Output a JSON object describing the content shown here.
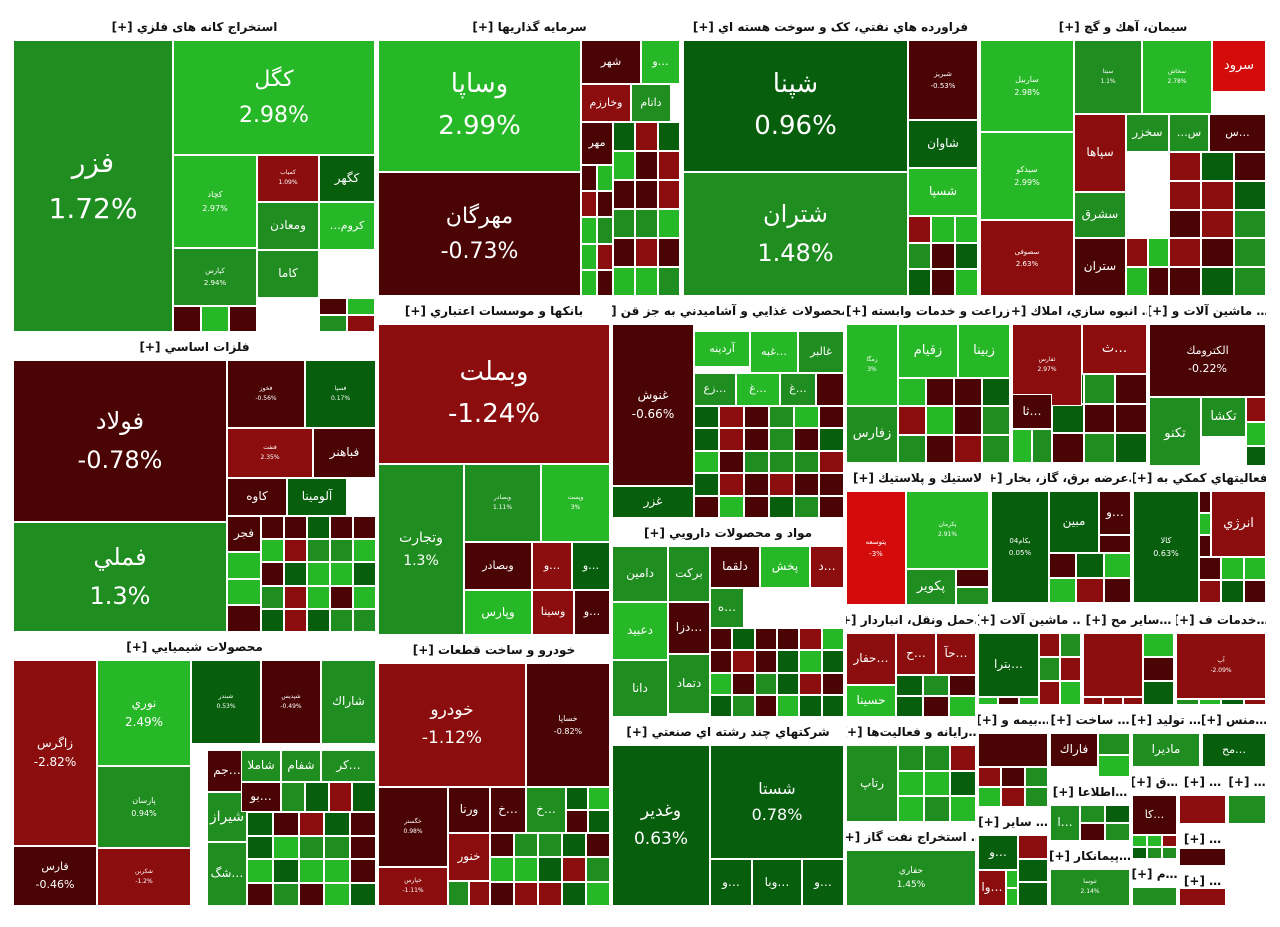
{
  "colors": {
    "dark_red": "#4a0404",
    "red": "#8b0d0d",
    "bright_red": "#d40b0b",
    "dark_green": "#075e0d",
    "green": "#1f8d1f",
    "bright_green": "#27b827",
    "grid_line": "#ffffff"
  },
  "sectors": [
    {
      "id": "metal-mining",
      "title": "استخراج کانه های فلزي [+]",
      "tiles": [
        {
          "symbol": "فزر",
          "change": "1.72%",
          "color": "green"
        },
        {
          "symbol": "کگل",
          "change": "2.98%",
          "color": "bright_green"
        },
        {
          "symbol": "کچاد",
          "change": "2.97%",
          "color": "bright_green"
        },
        {
          "symbol": "کمیاب",
          "change": "1.09%",
          "color": "red"
        },
        {
          "symbol": "کگهر",
          "change": "",
          "color": "dark_green"
        },
        {
          "symbol": "ومعادن",
          "change": "",
          "color": "green"
        },
        {
          "symbol": "کروم…",
          "change": "",
          "color": "bright_green"
        },
        {
          "symbol": "کاما",
          "change": "",
          "color": "green"
        },
        {
          "symbol": "کپارس",
          "change": "2.94%",
          "color": "green"
        }
      ]
    },
    {
      "id": "investment",
      "title": "سرمايه گذاريها [+]",
      "tiles": [
        {
          "symbol": "وساپا",
          "change": "2.99%",
          "color": "bright_green"
        },
        {
          "symbol": "مهرگان",
          "change": "-0.73%",
          "color": "dark_red"
        },
        {
          "symbol": "شهر",
          "change": "",
          "color": "dark_red"
        },
        {
          "symbol": "…و",
          "change": "",
          "color": "bright_green"
        },
        {
          "symbol": "وخارزم",
          "change": "",
          "color": "red"
        },
        {
          "symbol": "داتام",
          "change": "",
          "color": "green"
        },
        {
          "symbol": "مهر",
          "change": "",
          "color": "dark_red"
        }
      ]
    },
    {
      "id": "oil-products",
      "title": "فراورده هاي نفتي، کک و سوخت هسته اي [+]",
      "tiles": [
        {
          "symbol": "شپنا",
          "change": "0.96%",
          "color": "dark_green"
        },
        {
          "symbol": "شتران",
          "change": "1.48%",
          "color": "green"
        },
        {
          "symbol": "شبریز",
          "change": "-0.53%",
          "color": "dark_red"
        },
        {
          "symbol": "شاوان",
          "change": "",
          "color": "dark_green"
        },
        {
          "symbol": "شسپا",
          "change": "",
          "color": "bright_green"
        }
      ]
    },
    {
      "id": "cement",
      "title": "سيمان، آهك و گچ [+]",
      "tiles": [
        {
          "symbol": "سرود",
          "change": "",
          "color": "bright_red"
        },
        {
          "symbol": "ساربیل",
          "change": "2.98%",
          "color": "bright_green"
        },
        {
          "symbol": "سیتا",
          "change": "1.1%",
          "color": "green"
        },
        {
          "symbol": "سخاش",
          "change": "2.78%",
          "color": "bright_green"
        },
        {
          "symbol": "سیدکو",
          "change": "2.99%",
          "color": "bright_green"
        },
        {
          "symbol": "سپاها",
          "change": "",
          "color": "red"
        },
        {
          "symbol": "سخزر",
          "change": "",
          "color": "green"
        },
        {
          "symbol": "س…",
          "change": "",
          "color": "green"
        },
        {
          "symbol": "…س",
          "change": "",
          "color": "dark_red"
        },
        {
          "symbol": "سشرق",
          "change": "",
          "color": "green"
        },
        {
          "symbol": "سصوفی",
          "change": "2.63%",
          "color": "red"
        },
        {
          "symbol": "ستران",
          "change": "",
          "color": "dark_red"
        }
      ]
    },
    {
      "id": "basic-metals",
      "title": "فلزات اساسي [+]",
      "tiles": [
        {
          "symbol": "فولاد",
          "change": "-0.78%",
          "color": "dark_red"
        },
        {
          "symbol": "فملي",
          "change": "1.3%",
          "color": "green"
        },
        {
          "symbol": "فخوز",
          "change": "-0.56%",
          "color": "dark_red"
        },
        {
          "symbol": "فسپا",
          "change": "0.17%",
          "color": "dark_green"
        },
        {
          "symbol": "فنفت",
          "change": "2.35%",
          "color": "red"
        },
        {
          "symbol": "فباهنر",
          "change": "",
          "color": "dark_red"
        },
        {
          "symbol": "کاوه",
          "change": "",
          "color": "dark_red"
        },
        {
          "symbol": "آلومينا",
          "change": "",
          "color": "dark_green"
        },
        {
          "symbol": "فجر",
          "change": "",
          "color": "dark_red"
        }
      ]
    },
    {
      "id": "banks",
      "title": "بانكها و موسسات اعتباري [+]",
      "tiles": [
        {
          "symbol": "وبملت",
          "change": "-1.24%",
          "color": "red"
        },
        {
          "symbol": "وتجارت",
          "change": "1.3%",
          "color": "green"
        },
        {
          "symbol": "وبصادر",
          "change": "1.11%",
          "color": "green"
        },
        {
          "symbol": "وپست",
          "change": "3%",
          "color": "bright_green"
        },
        {
          "symbol": "وبصادر",
          "change": "",
          "color": "dark_red"
        },
        {
          "symbol": "…و",
          "change": "",
          "color": "red"
        },
        {
          "symbol": "…و",
          "change": "",
          "color": "dark_green"
        },
        {
          "symbol": "وپارس",
          "change": "",
          "color": "bright_green"
        },
        {
          "symbol": "وسينا",
          "change": "",
          "color": "red"
        },
        {
          "symbol": "…و",
          "change": "",
          "color": "dark_red"
        }
      ]
    },
    {
      "id": "food",
      "title": "…محصولات غذايي و آشاميدني به جز قن [+]",
      "tiles": [
        {
          "symbol": "غنوش",
          "change": "-0.66%",
          "color": "dark_red"
        },
        {
          "symbol": "غزر",
          "change": "",
          "color": "dark_green"
        },
        {
          "symbol": "غالبر",
          "change": "",
          "color": "green"
        },
        {
          "symbol": "…غبه",
          "change": "",
          "color": "bright_green"
        },
        {
          "symbol": "آردينه",
          "change": "",
          "color": "bright_green"
        },
        {
          "symbol": "…غ",
          "change": "",
          "color": "green"
        },
        {
          "symbol": "…غ",
          "change": "",
          "color": "bright_green"
        },
        {
          "symbol": "…زع",
          "change": "",
          "color": "green"
        }
      ]
    },
    {
      "id": "agriculture",
      "title": "زراعت و خدمات وابسته [+]",
      "tiles": [
        {
          "symbol": "زمگا",
          "change": "3%",
          "color": "bright_green"
        },
        {
          "symbol": "زبينا",
          "change": "",
          "color": "bright_green"
        },
        {
          "symbol": "زقيام",
          "change": "",
          "color": "bright_green"
        },
        {
          "symbol": "زفارس",
          "change": "",
          "color": "green"
        }
      ]
    },
    {
      "id": "construction",
      "title": "… انبوه سازي، املاك [+]",
      "tiles": [
        {
          "symbol": "ثفارس",
          "change": "2.97%",
          "color": "red"
        },
        {
          "symbol": "…ث",
          "change": "",
          "color": "red"
        },
        {
          "symbol": "…ثا",
          "change": "",
          "color": "dark_red"
        }
      ]
    },
    {
      "id": "machinery-electric",
      "title": "… ماشين آلات و [+]",
      "tiles": [
        {
          "symbol": "الكترومك",
          "change": "-0.22%",
          "color": "dark_red"
        },
        {
          "symbol": "تكشا",
          "change": "",
          "color": "green"
        },
        {
          "symbol": "تكنو",
          "change": "",
          "color": "green"
        }
      ]
    },
    {
      "id": "pharma",
      "title": "مواد و محصولات دارويي [+]",
      "tiles": [
        {
          "symbol": "دامين",
          "change": "",
          "color": "green"
        },
        {
          "symbol": "بركت",
          "change": "",
          "color": "green"
        },
        {
          "symbol": "دلقما",
          "change": "",
          "color": "dark_red"
        },
        {
          "symbol": "پخش",
          "change": "",
          "color": "bright_green"
        },
        {
          "symbol": "…د",
          "change": "",
          "color": "red"
        },
        {
          "symbol": "دعبيد",
          "change": "",
          "color": "bright_green"
        },
        {
          "symbol": "…دزا",
          "change": "",
          "color": "dark_red"
        },
        {
          "symbol": "…ه",
          "change": "",
          "color": "green"
        },
        {
          "symbol": "دانا",
          "change": "",
          "color": "green"
        },
        {
          "symbol": "دتماد",
          "change": "",
          "color": "green"
        }
      ]
    },
    {
      "id": "plastics",
      "title": "لاستيك و پلاستيك [+]",
      "tiles": [
        {
          "symbol": "پتوسعه",
          "change": "-3%",
          "color": "bright_red"
        },
        {
          "symbol": "پکرمان",
          "change": "2.91%",
          "color": "bright_green"
        },
        {
          "symbol": "پکوير",
          "change": "",
          "color": "green"
        }
      ]
    },
    {
      "id": "utilities",
      "title": "…عرضه برق، گاز، بخار [+]",
      "tiles": [
        {
          "symbol": "بکام04",
          "change": "0.05%",
          "color": "dark_green"
        },
        {
          "symbol": "مبين",
          "change": "",
          "color": "dark_green"
        },
        {
          "symbol": "…و",
          "change": "",
          "color": "dark_red"
        }
      ]
    },
    {
      "id": "aux-activities",
      "title": "فعاليتهاي كمكي به [+]",
      "tiles": [
        {
          "symbol": "كالا",
          "change": "0.63%",
          "color": "dark_green"
        },
        {
          "symbol": "انرژي",
          "change": "",
          "color": "red"
        }
      ]
    },
    {
      "id": "transport",
      "title": "…حمل ونقل، انباردار [+]",
      "tiles": [
        {
          "symbol": "…حفار",
          "change": "",
          "color": "red"
        },
        {
          "symbol": "…ح",
          "change": "",
          "color": "red"
        },
        {
          "symbol": "…حآ",
          "change": "",
          "color": "red"
        },
        {
          "symbol": "حسينا",
          "change": "",
          "color": "bright_green"
        }
      ]
    },
    {
      "id": "machinery",
      "title": "… ماشين آلات [+]",
      "tiles": [
        {
          "symbol": "…بترا",
          "change": "",
          "color": "dark_green"
        }
      ]
    },
    {
      "id": "other-mining",
      "title": "…ساير مح [+]",
      "tiles": [
        {
          "symbol": "",
          "change": "",
          "color": "red"
        }
      ]
    },
    {
      "id": "tech-services",
      "title": "…خدمات ف [+]",
      "tiles": [
        {
          "symbol": "آپ",
          "change": "-2.09%",
          "color": "red"
        }
      ]
    },
    {
      "id": "chemicals",
      "title": "محصولات شيميايي [+]",
      "tiles": [
        {
          "symbol": "زاگرس",
          "change": "-2.82%",
          "color": "red"
        },
        {
          "symbol": "نوري",
          "change": "2.49%",
          "color": "bright_green"
        },
        {
          "symbol": "شبندر",
          "change": "0.53%",
          "color": "dark_green"
        },
        {
          "symbol": "شپدیس",
          "change": "-0.49%",
          "color": "dark_red"
        },
        {
          "symbol": "شاراك",
          "change": "",
          "color": "green"
        },
        {
          "symbol": "پارسان",
          "change": "0.94%",
          "color": "green"
        },
        {
          "symbol": "فارس",
          "change": "-0.46%",
          "color": "dark_red"
        },
        {
          "symbol": "شيراز",
          "change": "",
          "color": "green"
        },
        {
          "symbol": "…جم",
          "change": "",
          "color": "dark_red"
        },
        {
          "symbol": "شاملا",
          "change": "",
          "color": "green"
        },
        {
          "symbol": "شفام",
          "change": "",
          "color": "green"
        },
        {
          "symbol": "…كر",
          "change": "",
          "color": "green"
        },
        {
          "symbol": "…بو",
          "change": "",
          "color": "dark_red"
        },
        {
          "symbol": "…شگ",
          "change": "",
          "color": "green"
        },
        {
          "symbol": "شکربن",
          "change": "-1.2%",
          "color": "red"
        }
      ]
    },
    {
      "id": "automotive",
      "title": "خودرو و ساخت قطعات [+]",
      "tiles": [
        {
          "symbol": "خودرو",
          "change": "-1.12%",
          "color": "red"
        },
        {
          "symbol": "خساپا",
          "change": "-0.82%",
          "color": "dark_red"
        },
        {
          "symbol": "خگستر",
          "change": "0.98%",
          "color": "dark_red"
        },
        {
          "symbol": "ورنا",
          "change": "",
          "color": "dark_red"
        },
        {
          "symbol": "…خ",
          "change": "",
          "color": "dark_red"
        },
        {
          "symbol": "…خ",
          "change": "",
          "color": "green"
        },
        {
          "symbol": "خنور",
          "change": "",
          "color": "red"
        },
        {
          "symbol": "خپارس",
          "change": "-1.11%",
          "color": "red"
        }
      ]
    },
    {
      "id": "diversified",
      "title": "شركتهاي چند رشته اي صنعتي [+]",
      "tiles": [
        {
          "symbol": "وغدير",
          "change": "0.63%",
          "color": "dark_green"
        },
        {
          "symbol": "شستا",
          "change": "0.78%",
          "color": "dark_green"
        },
        {
          "symbol": "…و",
          "change": "",
          "color": "dark_green"
        },
        {
          "symbol": "…وبا",
          "change": "",
          "color": "dark_green"
        },
        {
          "symbol": "…و",
          "change": "",
          "color": "dark_green"
        }
      ]
    },
    {
      "id": "computer",
      "title": "…رايانه و فعاليت‌ها [+]",
      "tiles": [
        {
          "symbol": "رتاپ",
          "change": "",
          "color": "green"
        }
      ]
    },
    {
      "id": "oil-gas-extraction",
      "title": "… استخراج نفت گاز [+]",
      "tiles": [
        {
          "symbol": "حفاري",
          "change": "1.45%",
          "color": "green"
        }
      ]
    },
    {
      "id": "insurance",
      "title": "…بيمه و [+]",
      "tiles": [
        {
          "symbol": "",
          "change": "",
          "color": "dark_red"
        }
      ]
    },
    {
      "id": "manufacturing",
      "title": "… ساخت [+]",
      "tiles": [
        {
          "symbol": "فاراك",
          "change": "",
          "color": "dark_red"
        }
      ]
    },
    {
      "id": "production",
      "title": "… توليد [+]",
      "tiles": [
        {
          "symbol": "ماديرا",
          "change": "",
          "color": "green"
        }
      ]
    },
    {
      "id": "textiles",
      "title": "…منس [+]",
      "tiles": [
        {
          "symbol": "…مح",
          "change": "",
          "color": "dark_green"
        }
      ]
    },
    {
      "id": "other",
      "title": "… ساير [+]",
      "tiles": [
        {
          "symbol": "…و",
          "change": "",
          "color": "dark_green"
        },
        {
          "symbol": "…وا",
          "change": "",
          "color": "red"
        }
      ]
    },
    {
      "id": "telecom",
      "title": "…اطلاعا [+]",
      "tiles": [
        {
          "symbol": "…ا",
          "change": "",
          "color": "green"
        }
      ]
    },
    {
      "id": "contracting",
      "title": "…پيمانكار [+]",
      "tiles": [
        {
          "symbol": "ثنوسا",
          "change": "2.14%",
          "color": "green"
        }
      ]
    },
    {
      "id": "mini-1",
      "title": "…ق [+]",
      "tiles": [
        {
          "symbol": "…كا",
          "change": "",
          "color": "dark_red"
        }
      ]
    },
    {
      "id": "mini-2",
      "title": "… [+]",
      "tiles": [
        {
          "symbol": "",
          "change": "",
          "color": "red"
        }
      ]
    },
    {
      "id": "mini-3",
      "title": "… [+]",
      "tiles": [
        {
          "symbol": "",
          "change": "",
          "color": "green"
        }
      ]
    },
    {
      "id": "mini-4",
      "title": "… [+]",
      "tiles": [
        {
          "symbol": "",
          "change": "",
          "color": "dark_red"
        }
      ]
    },
    {
      "id": "mini-5",
      "title": "…م [+]",
      "tiles": [
        {
          "symbol": "",
          "change": "",
          "color": "green"
        }
      ]
    },
    {
      "id": "mini-6",
      "title": "… [+]",
      "tiles": [
        {
          "symbol": "",
          "change": "",
          "color": "red"
        }
      ]
    }
  ]
}
